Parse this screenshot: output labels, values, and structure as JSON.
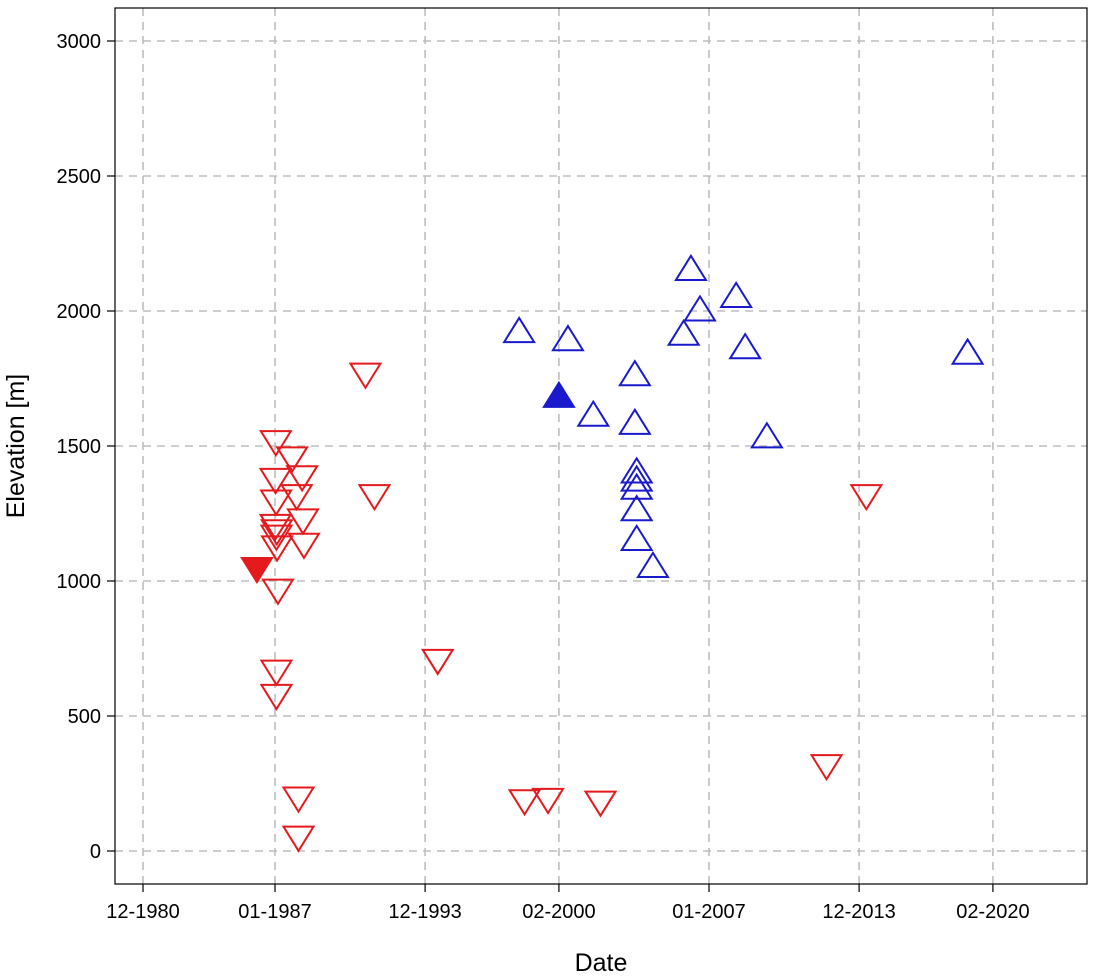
{
  "chart_data": {
    "type": "scatter",
    "title": "",
    "xlabel": "Date",
    "ylabel": "Elevation [m]",
    "x_scale": "date",
    "xlim": [
      "1980-01-01",
      "2021-06-01"
    ],
    "ylim": [
      -120,
      3120
    ],
    "x_ticks": [
      {
        "value": "1980-12-01",
        "label": "12-1980"
      },
      {
        "value": "1987-01-01",
        "label": "01-1987"
      },
      {
        "value": "1993-12-01",
        "label": "12-1993"
      },
      {
        "value": "2000-02-01",
        "label": "02-2000"
      },
      {
        "value": "2007-01-01",
        "label": "01-2007"
      },
      {
        "value": "2013-12-01",
        "label": "12-2013"
      },
      {
        "value": "2020-02-01",
        "label": "02-2020"
      }
    ],
    "y_ticks": [
      0,
      500,
      1000,
      1500,
      2000,
      2500,
      3000
    ],
    "grid": true,
    "colors": {
      "red": "#e41a1c",
      "blue": "#1a1acd",
      "grid": "#bdbdbd"
    },
    "series": [
      {
        "marker": "triangle-down-open",
        "color": "#e41a1c",
        "points": [
          [
            "1987-01-15",
            1520
          ],
          [
            "1987-01-10",
            1380
          ],
          [
            "1987-01-20",
            1300
          ],
          [
            "1987-01-10",
            1210
          ],
          [
            "1987-02-01",
            1190
          ],
          [
            "1987-01-25",
            1170
          ],
          [
            "1987-02-05",
            1130
          ],
          [
            "1987-02-20",
            970
          ],
          [
            "1987-01-25",
            670
          ],
          [
            "1987-01-25",
            580
          ],
          [
            "1987-10-15",
            1460
          ],
          [
            "1988-04-01",
            1390
          ],
          [
            "1988-01-01",
            1320
          ],
          [
            "1988-04-15",
            1230
          ],
          [
            "1988-05-01",
            1140
          ],
          [
            "1988-02-01",
            200
          ],
          [
            "1988-02-01",
            55
          ],
          [
            "1991-03-01",
            1770
          ],
          [
            "1991-08-01",
            1320
          ],
          [
            "1994-07-01",
            710
          ],
          [
            "1998-07-01",
            190
          ],
          [
            "1999-08-01",
            195
          ],
          [
            "2002-01-01",
            185
          ],
          [
            "2012-06-01",
            320
          ],
          [
            "2014-04-01",
            1320
          ]
        ]
      },
      {
        "marker": "triangle-down-filled",
        "color": "#e41a1c",
        "points": [
          [
            "1986-03-01",
            1050
          ]
        ]
      },
      {
        "marker": "triangle-up-open",
        "color": "#1a1acd",
        "points": [
          [
            "1998-04-01",
            1920
          ],
          [
            "2000-07-01",
            1890
          ],
          [
            "2001-09-01",
            1610
          ],
          [
            "2003-08-01",
            1760
          ],
          [
            "2003-08-01",
            1580
          ],
          [
            "2003-09-01",
            1400
          ],
          [
            "2003-09-01",
            1370
          ],
          [
            "2003-09-01",
            1340
          ],
          [
            "2003-09-01",
            1260
          ],
          [
            "2003-09-01",
            1150
          ],
          [
            "2004-06-01",
            1050
          ],
          [
            "2005-11-01",
            1910
          ],
          [
            "2006-03-01",
            2150
          ],
          [
            "2006-08-01",
            2000
          ],
          [
            "2008-04-01",
            2050
          ],
          [
            "2008-09-01",
            1860
          ],
          [
            "2009-09-01",
            1530
          ],
          [
            "2018-12-01",
            1840
          ]
        ]
      },
      {
        "marker": "triangle-up-filled",
        "color": "#1a1acd",
        "points": [
          [
            "2000-02-01",
            1680
          ]
        ]
      }
    ]
  }
}
